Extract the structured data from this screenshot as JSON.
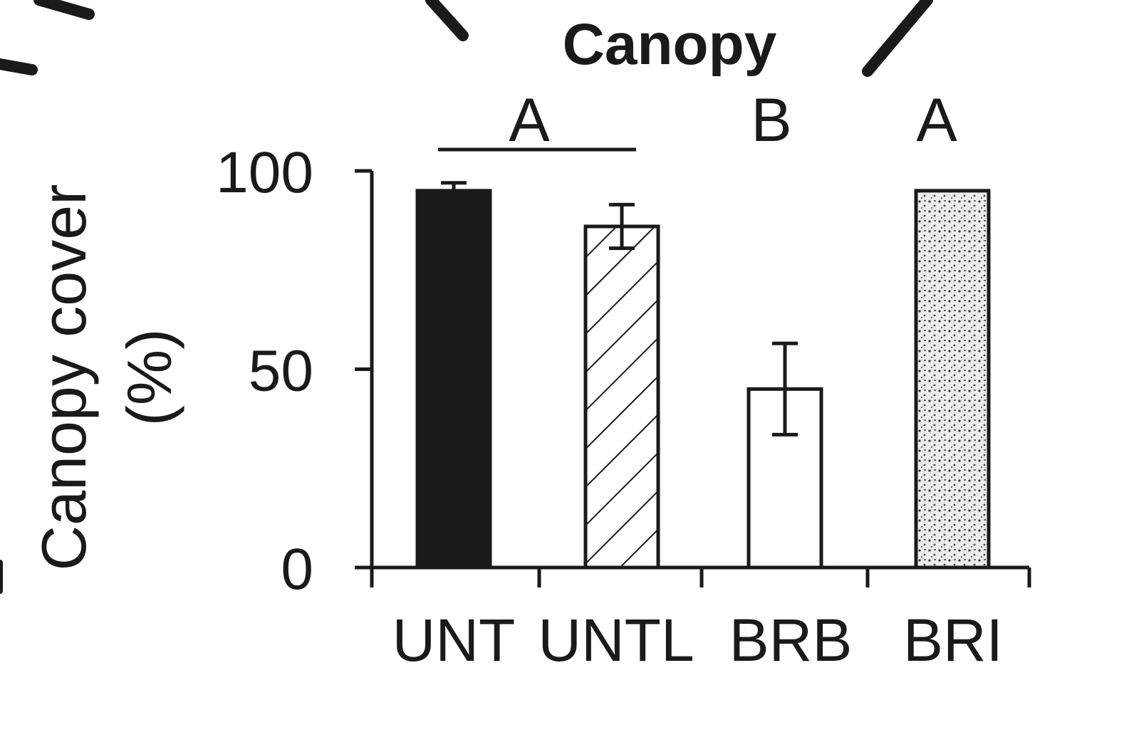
{
  "chart_data": {
    "type": "bar",
    "title": "Canopy",
    "ylabel_line1": "Canopy cover",
    "ylabel_line2": "(%)",
    "xlabel": "",
    "categories": [
      "UNT",
      "UNTL",
      "BRB",
      "BRI"
    ],
    "values": [
      95,
      86,
      45,
      95
    ],
    "errors": [
      2,
      5.5,
      11.5,
      0
    ],
    "fills": [
      "solid-black",
      "diagonal-hatch",
      "white",
      "stipple"
    ],
    "significance_letters": [
      "A",
      "B",
      "A"
    ],
    "significance_groups": [
      [
        "UNT",
        "UNTL"
      ],
      [
        "BRB"
      ],
      [
        "BRI"
      ]
    ],
    "ylim": [
      0,
      100
    ],
    "yticks": [
      0,
      50,
      100
    ],
    "grid": false,
    "colors": {
      "ink": "#1a1a1a",
      "background": "#ffffff"
    }
  }
}
